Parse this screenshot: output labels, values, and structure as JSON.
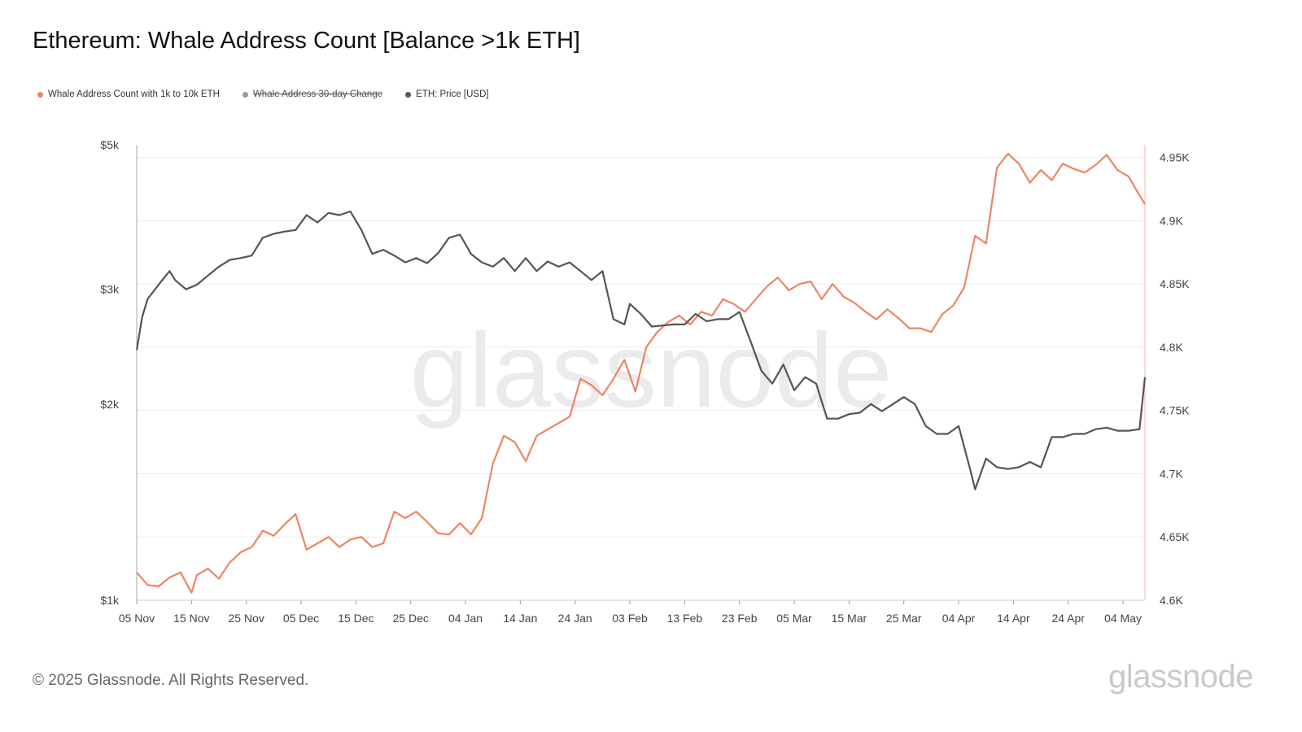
{
  "title": "Ethereum: Whale Address Count [Balance >1k ETH]",
  "legend": [
    {
      "label": "Whale Address Count with 1k to 10k ETH",
      "color": "#ee8467",
      "active": true
    },
    {
      "label": "Whale Address 30-day Change",
      "color": "#999999",
      "active": false
    },
    {
      "label": "ETH: Price [USD]",
      "color": "#555555",
      "active": true
    }
  ],
  "watermark": "glassnode",
  "footer": "© 2025 Glassnode. All Rights Reserved.",
  "brand": "glassnode",
  "chart_data": {
    "type": "line",
    "x_ticks": [
      "05 Nov",
      "15 Nov",
      "25 Nov",
      "05 Dec",
      "15 Dec",
      "25 Dec",
      "04 Jan",
      "14 Jan",
      "24 Jan",
      "03 Feb",
      "13 Feb",
      "23 Feb",
      "05 Mar",
      "15 Mar",
      "25 Mar",
      "04 Apr",
      "14 Apr",
      "24 Apr",
      "04 May"
    ],
    "x_range": [
      "2024-11-05",
      "2025-05-08"
    ],
    "y_left": {
      "label": "ETH: Price [USD]",
      "scale": "log",
      "ticks": [
        "$1k",
        "$2k",
        "$3k",
        "$5k"
      ],
      "tick_values": [
        1000,
        2000,
        3000,
        5000
      ],
      "range": [
        1000,
        5000
      ]
    },
    "y_right": {
      "label": "Whale Address Count",
      "ticks": [
        "4.6K",
        "4.65K",
        "4.7K",
        "4.75K",
        "4.8K",
        "4.85K",
        "4.9K",
        "4.95K"
      ],
      "tick_values": [
        4600,
        4650,
        4700,
        4750,
        4800,
        4850,
        4900,
        4950
      ],
      "range": [
        4600,
        4960
      ]
    },
    "grid": true,
    "legend_position": "top-left",
    "series": [
      {
        "name": "Whale Address Count with 1k to 10k ETH",
        "axis": "right",
        "color": "#ee8467",
        "x": [
          "2024-11-05",
          "2024-11-07",
          "2024-11-09",
          "2024-11-11",
          "2024-11-13",
          "2024-11-15",
          "2024-11-16",
          "2024-11-18",
          "2024-11-20",
          "2024-11-22",
          "2024-11-24",
          "2024-11-26",
          "2024-11-28",
          "2024-11-30",
          "2024-12-02",
          "2024-12-04",
          "2024-12-06",
          "2024-12-08",
          "2024-12-10",
          "2024-12-12",
          "2024-12-14",
          "2024-12-16",
          "2024-12-18",
          "2024-12-20",
          "2024-12-22",
          "2024-12-24",
          "2024-12-26",
          "2024-12-28",
          "2024-12-30",
          "2025-01-01",
          "2025-01-03",
          "2025-01-05",
          "2025-01-07",
          "2025-01-09",
          "2025-01-11",
          "2025-01-13",
          "2025-01-15",
          "2025-01-17",
          "2025-01-19",
          "2025-01-21",
          "2025-01-23",
          "2025-01-25",
          "2025-01-27",
          "2025-01-29",
          "2025-01-31",
          "2025-02-02",
          "2025-02-04",
          "2025-02-06",
          "2025-02-08",
          "2025-02-10",
          "2025-02-12",
          "2025-02-14",
          "2025-02-16",
          "2025-02-18",
          "2025-02-20",
          "2025-02-22",
          "2025-02-24",
          "2025-02-26",
          "2025-02-28",
          "2025-03-02",
          "2025-03-04",
          "2025-03-06",
          "2025-03-08",
          "2025-03-10",
          "2025-03-12",
          "2025-03-14",
          "2025-03-16",
          "2025-03-18",
          "2025-03-20",
          "2025-03-22",
          "2025-03-24",
          "2025-03-26",
          "2025-03-28",
          "2025-03-30",
          "2025-04-01",
          "2025-04-03",
          "2025-04-05",
          "2025-04-07",
          "2025-04-09",
          "2025-04-11",
          "2025-04-13",
          "2025-04-15",
          "2025-04-17",
          "2025-04-19",
          "2025-04-21",
          "2025-04-23",
          "2025-04-25",
          "2025-04-27",
          "2025-04-29",
          "2025-05-01",
          "2025-05-03",
          "2025-05-05",
          "2025-05-07",
          "2025-05-08"
        ],
        "values": [
          4622,
          4612,
          4611,
          4618,
          4622,
          4606,
          4620,
          4625,
          4617,
          4630,
          4638,
          4642,
          4655,
          4651,
          4660,
          4668,
          4640,
          4645,
          4650,
          4642,
          4648,
          4650,
          4642,
          4645,
          4670,
          4665,
          4670,
          4662,
          4653,
          4652,
          4661,
          4652,
          4665,
          4708,
          4730,
          4725,
          4710,
          4730,
          4735,
          4740,
          4745,
          4775,
          4770,
          4762,
          4775,
          4790,
          4765,
          4800,
          4812,
          4820,
          4825,
          4818,
          4828,
          4825,
          4838,
          4834,
          4828,
          4838,
          4848,
          4855,
          4845,
          4850,
          4852,
          4838,
          4850,
          4840,
          4835,
          4828,
          4822,
          4830,
          4823,
          4815,
          4815,
          4812,
          4826,
          4833,
          4847,
          4888,
          4882,
          4942,
          4953,
          4945,
          4930,
          4940,
          4932,
          4945,
          4941,
          4938,
          4944,
          4952,
          4940,
          4935,
          4920,
          4913
        ]
      },
      {
        "name": "ETH: Price [USD]",
        "axis": "left",
        "color": "#555555",
        "x": [
          "2024-11-05",
          "2024-11-06",
          "2024-11-07",
          "2024-11-09",
          "2024-11-11",
          "2024-11-12",
          "2024-11-14",
          "2024-11-16",
          "2024-11-18",
          "2024-11-20",
          "2024-11-22",
          "2024-11-24",
          "2024-11-26",
          "2024-11-28",
          "2024-11-30",
          "2024-12-02",
          "2024-12-04",
          "2024-12-06",
          "2024-12-08",
          "2024-12-10",
          "2024-12-12",
          "2024-12-14",
          "2024-12-16",
          "2024-12-18",
          "2024-12-20",
          "2024-12-22",
          "2024-12-24",
          "2024-12-26",
          "2024-12-28",
          "2024-12-30",
          "2025-01-01",
          "2025-01-03",
          "2025-01-05",
          "2025-01-07",
          "2025-01-09",
          "2025-01-11",
          "2025-01-13",
          "2025-01-15",
          "2025-01-17",
          "2025-01-19",
          "2025-01-21",
          "2025-01-23",
          "2025-01-25",
          "2025-01-27",
          "2025-01-29",
          "2025-01-31",
          "2025-02-02",
          "2025-02-03",
          "2025-02-05",
          "2025-02-07",
          "2025-02-09",
          "2025-02-11",
          "2025-02-13",
          "2025-02-15",
          "2025-02-17",
          "2025-02-19",
          "2025-02-21",
          "2025-02-23",
          "2025-02-25",
          "2025-02-27",
          "2025-03-01",
          "2025-03-03",
          "2025-03-05",
          "2025-03-07",
          "2025-03-09",
          "2025-03-11",
          "2025-03-13",
          "2025-03-15",
          "2025-03-17",
          "2025-03-19",
          "2025-03-21",
          "2025-03-23",
          "2025-03-25",
          "2025-03-27",
          "2025-03-29",
          "2025-03-31",
          "2025-04-02",
          "2025-04-04",
          "2025-04-06",
          "2025-04-07",
          "2025-04-09",
          "2025-04-11",
          "2025-04-13",
          "2025-04-15",
          "2025-04-17",
          "2025-04-19",
          "2025-04-21",
          "2025-04-23",
          "2025-04-25",
          "2025-04-27",
          "2025-04-29",
          "2025-05-01",
          "2025-05-03",
          "2025-05-05",
          "2025-05-07",
          "2025-05-08"
        ],
        "values": [
          2420,
          2720,
          2900,
          3050,
          3200,
          3100,
          3000,
          3050,
          3150,
          3250,
          3330,
          3350,
          3380,
          3600,
          3650,
          3680,
          3700,
          3900,
          3800,
          3930,
          3900,
          3950,
          3700,
          3400,
          3450,
          3380,
          3300,
          3350,
          3290,
          3410,
          3600,
          3640,
          3400,
          3300,
          3250,
          3350,
          3200,
          3350,
          3200,
          3310,
          3250,
          3300,
          3200,
          3100,
          3200,
          2700,
          2650,
          2850,
          2750,
          2630,
          2640,
          2650,
          2650,
          2750,
          2680,
          2700,
          2700,
          2770,
          2500,
          2250,
          2150,
          2300,
          2100,
          2200,
          2150,
          1900,
          1900,
          1930,
          1940,
          2000,
          1950,
          2000,
          2050,
          2000,
          1850,
          1800,
          1800,
          1850,
          1600,
          1480,
          1650,
          1600,
          1590,
          1600,
          1630,
          1600,
          1780,
          1780,
          1800,
          1800,
          1830,
          1840,
          1820,
          1820,
          1830,
          2200
        ]
      }
    ]
  }
}
